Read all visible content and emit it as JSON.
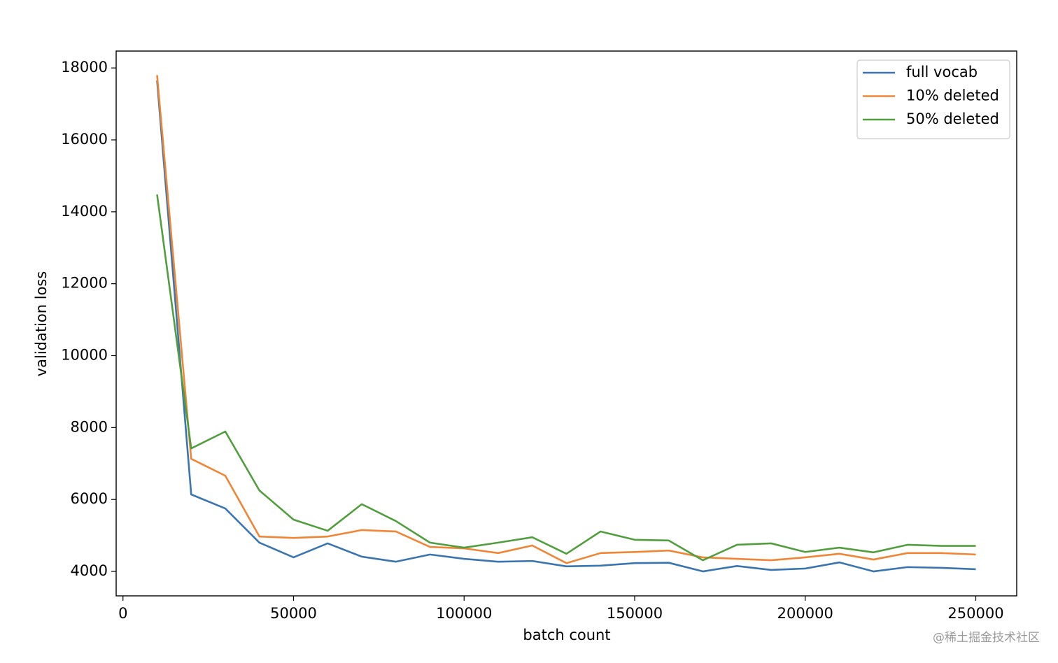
{
  "chart_data": {
    "type": "line",
    "xlabel": "batch count",
    "ylabel": "validation loss",
    "x": [
      10000,
      20000,
      30000,
      40000,
      50000,
      60000,
      70000,
      80000,
      90000,
      100000,
      110000,
      120000,
      130000,
      140000,
      150000,
      160000,
      170000,
      180000,
      190000,
      200000,
      210000,
      220000,
      230000,
      240000,
      250000
    ],
    "series": [
      {
        "name": "full vocab",
        "color": "#3a75af",
        "values": [
          17650,
          6140,
          5750,
          4800,
          4390,
          4780,
          4410,
          4270,
          4470,
          4350,
          4270,
          4290,
          4140,
          4160,
          4230,
          4240,
          4000,
          4150,
          4040,
          4080,
          4250,
          4000,
          4120,
          4100,
          4060
        ]
      },
      {
        "name": "10% deleted",
        "color": "#ef8636",
        "values": [
          17800,
          7130,
          6660,
          4970,
          4930,
          4970,
          5150,
          5110,
          4680,
          4640,
          4510,
          4720,
          4230,
          4510,
          4540,
          4580,
          4390,
          4350,
          4310,
          4390,
          4490,
          4330,
          4510,
          4510,
          4470
        ]
      },
      {
        "name": "50% deleted",
        "color": "#519e3e",
        "values": [
          14480,
          7420,
          7890,
          6250,
          5440,
          5130,
          5870,
          5400,
          4800,
          4660,
          4800,
          4950,
          4490,
          5110,
          4880,
          4860,
          4310,
          4740,
          4780,
          4540,
          4660,
          4530,
          4740,
          4710,
          4710
        ]
      }
    ],
    "xlim": [
      -2000,
      262000
    ],
    "xticks": [
      0,
      50000,
      100000,
      150000,
      200000,
      250000
    ],
    "ylim": [
      3320,
      18470
    ],
    "yticks": [
      4000,
      6000,
      8000,
      10000,
      12000,
      14000,
      16000,
      18000
    ],
    "legend": "upper right",
    "grid": false
  },
  "watermark": "@稀土掘金技术社区"
}
